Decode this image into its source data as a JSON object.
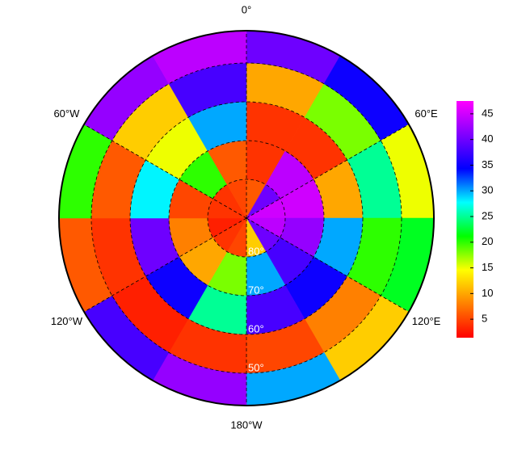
{
  "chart_data": {
    "type": "polar-heatmap",
    "lon_labels": [
      {
        "value": 0,
        "label": "0°"
      },
      {
        "value": 60,
        "label": "60°E"
      },
      {
        "value": 120,
        "label": "120°E"
      },
      {
        "value": 180,
        "label": "180°W"
      },
      {
        "value": -120,
        "label": "120°W"
      },
      {
        "value": -60,
        "label": "60°W"
      }
    ],
    "lat_labels": [
      {
        "value": -80,
        "label": "80°"
      },
      {
        "value": -70,
        "label": "70°"
      },
      {
        "value": -60,
        "label": "60°"
      },
      {
        "value": -50,
        "label": "50°"
      }
    ],
    "rings": [
      {
        "values": [
          6,
          40,
          45,
          44,
          40,
          12,
          5,
          4,
          3,
          4,
          4,
          5
        ]
      },
      {
        "values": [
          4,
          44,
          45,
          42,
          38,
          30,
          18,
          10,
          8,
          5,
          20,
          6
        ]
      },
      {
        "values": [
          4,
          4,
          10,
          30,
          35,
          38,
          25,
          35,
          40,
          28,
          15,
          30
        ]
      },
      {
        "values": [
          10,
          18,
          25,
          20,
          8,
          5,
          4,
          3,
          4,
          6,
          12,
          38
        ]
      },
      {
        "values": [
          40,
          35,
          15,
          22,
          12,
          30,
          42,
          38,
          6,
          20,
          42,
          44
        ]
      }
    ],
    "clim": [
      1.4,
      47.5
    ],
    "cticks": [
      5,
      10,
      15,
      20,
      25,
      30,
      35,
      40,
      45
    ],
    "colormap": [
      "#ff0000",
      "#ff8000",
      "#ffff00",
      "#00ff00",
      "#00ffff",
      "#0000ff",
      "#8000ff",
      "#ff00ff"
    ]
  }
}
